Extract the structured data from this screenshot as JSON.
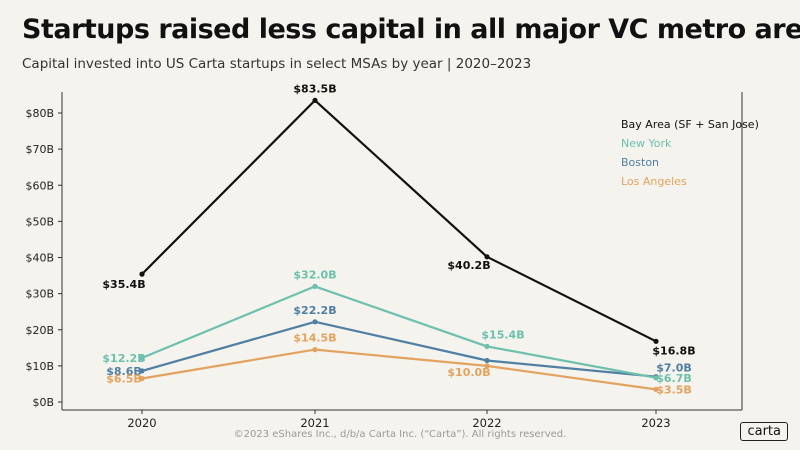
{
  "header": {
    "title": "Startups raised less capital in all major VC metro areas",
    "subtitle": "Capital invested into US Carta startups in select MSAs by year | 2020–2023"
  },
  "footer": {
    "copyright": "©2023 eShares Inc., d/b/a Carta Inc. (“Carta”). All rights reserved.",
    "logo": "carta"
  },
  "chart_data": {
    "type": "line",
    "title": "Startups raised less capital in all major VC metro areas",
    "subtitle": "Capital invested into US Carta startups in select MSAs by year | 2020–2023",
    "xlabel": "",
    "ylabel": "",
    "categories": [
      "2020",
      "2021",
      "2022",
      "2023"
    ],
    "ylim": [
      0,
      80
    ],
    "yticks": [
      0,
      10,
      20,
      30,
      40,
      50,
      60,
      70,
      80
    ],
    "ytick_labels": [
      "$0B",
      "$10B",
      "$20B",
      "$30B",
      "$40B",
      "$50B",
      "$60B",
      "$70B",
      "$80B"
    ],
    "legend_position": "top-right",
    "series": [
      {
        "name": "Bay Area (SF + San Jose)",
        "color": "#111111",
        "values": [
          35.4,
          83.5,
          40.2,
          16.8
        ],
        "labels": [
          "$35.4B",
          "$83.5B",
          "$40.2B",
          "$16.8B"
        ]
      },
      {
        "name": "New York",
        "color": "#6cc0ac",
        "values": [
          12.2,
          32.0,
          15.4,
          6.7
        ],
        "labels": [
          "$12.2B",
          "$32.0B",
          "$15.4B",
          "$6.7B"
        ]
      },
      {
        "name": "Boston",
        "color": "#4f7fa3",
        "values": [
          8.6,
          22.2,
          11.5,
          7.0
        ],
        "labels": [
          "$8.6B",
          "$22.2B",
          "",
          "$7.0B"
        ]
      },
      {
        "name": "Los Angeles",
        "color": "#e3a35e",
        "values": [
          6.5,
          14.5,
          10.0,
          3.5
        ],
        "labels": [
          "$6.5B",
          "$14.5B",
          "$10.0B",
          "$3.5B"
        ]
      }
    ]
  }
}
